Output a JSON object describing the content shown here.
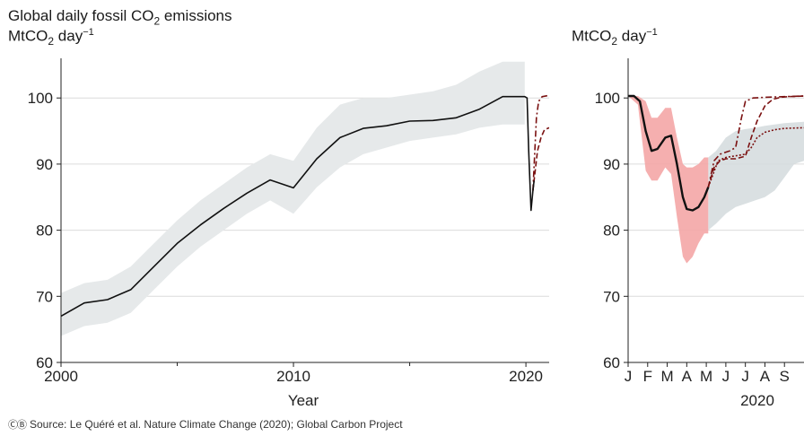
{
  "header": {
    "title_pre": "Global daily fossil CO",
    "title_sub": "2",
    "title_post": " emissions",
    "unit_pre": "MtCO",
    "unit_sub": "2",
    "unit_mid": " day",
    "unit_sup": "−1"
  },
  "footer": {
    "cc_icons": "ⒸⒷ",
    "source": "Source: Le Quéré et al. Nature Climate Change (2020); Global Carbon Project"
  },
  "colors": {
    "line": "#111111",
    "band": "#e6e9ea",
    "confinement_band": "#f4a6a6",
    "scenario": "#7a1010",
    "grid": "#dcdcdc"
  },
  "chart_data": [
    {
      "type": "line",
      "title": "Global daily fossil CO2 emissions",
      "ylabel": "MtCO2 day-1",
      "xlabel": "Year",
      "xlim": [
        2000,
        2021
      ],
      "ylim": [
        60,
        106
      ],
      "yticks": [
        60,
        70,
        80,
        90,
        100
      ],
      "xticks": [
        2000,
        2010,
        2020
      ],
      "xtick_labels": [
        "2000",
        "2010",
        "2020"
      ],
      "minor_xticks": [
        2005,
        2015
      ],
      "grid": true,
      "series": [
        {
          "x": [
            2000,
            2001,
            2002,
            2003,
            2004,
            2005,
            2006,
            2007,
            2008,
            2009,
            2010,
            2011,
            2012,
            2013,
            2014,
            2015,
            2016,
            2017,
            2018,
            2019,
            2019.95,
            2020.05,
            2020.12,
            2020.22,
            2020.3,
            2020.35
          ],
          "y": [
            67,
            69,
            69.5,
            71,
            74.5,
            78,
            80.8,
            83.3,
            85.6,
            87.6,
            86.4,
            90.8,
            94,
            95.4,
            95.8,
            96.5,
            96.6,
            97,
            98.3,
            100.2,
            100.2,
            100,
            92,
            83,
            86,
            87.5
          ]
        }
      ],
      "band": {
        "x": [
          2000,
          2001,
          2002,
          2003,
          2004,
          2005,
          2006,
          2007,
          2008,
          2009,
          2010,
          2011,
          2012,
          2013,
          2014,
          2015,
          2016,
          2017,
          2018,
          2019,
          2019.95
        ],
        "lower": [
          64,
          65.5,
          66,
          67.5,
          71,
          74.5,
          77.5,
          80,
          82.5,
          84.5,
          82.5,
          86.5,
          89.5,
          91.5,
          92.5,
          93.5,
          94,
          94.5,
          95.5,
          96,
          96
        ],
        "upper": [
          70.5,
          72,
          72.5,
          74.5,
          78,
          81.5,
          84.5,
          87,
          89.5,
          91.5,
          90.5,
          95.5,
          99,
          100,
          100,
          100.5,
          101,
          102,
          104,
          105.5,
          105.5
        ]
      },
      "scenarios": [
        {
          "x": [
            2020.3,
            2020.45,
            2020.55,
            2020.7,
            2021
          ],
          "y": [
            86,
            97,
            99.5,
            100.2,
            100.4
          ]
        },
        {
          "x": [
            2020.3,
            2020.5,
            2020.65,
            2020.8,
            2021
          ],
          "y": [
            86,
            92,
            94,
            95.2,
            95.5
          ]
        }
      ]
    },
    {
      "type": "line",
      "ylabel": "MtCO2 day-1",
      "xlabel": "2020",
      "xlim": [
        0,
        9
      ],
      "ylim": [
        60,
        106
      ],
      "yticks": [
        60,
        70,
        80,
        90,
        100
      ],
      "xticks": [
        0,
        1,
        2,
        3,
        4,
        5,
        6,
        7,
        8
      ],
      "xtick_labels": [
        "J",
        "F",
        "M",
        "A",
        "M",
        "J",
        "J",
        "A",
        "S"
      ],
      "grid": true,
      "series": [
        {
          "x": [
            0,
            0.3,
            0.6,
            0.9,
            1.2,
            1.5,
            1.9,
            2.2,
            2.5,
            2.8,
            3.0,
            3.3,
            3.6,
            3.9,
            4.1
          ],
          "y": [
            100.3,
            100.3,
            99.5,
            95,
            92,
            92.3,
            94,
            94.3,
            90,
            85,
            83.2,
            83,
            83.5,
            85,
            86.5
          ]
        }
      ],
      "confinement_band": {
        "x": [
          0,
          0.5,
          0.9,
          1.2,
          1.5,
          1.9,
          2.2,
          2.5,
          2.8,
          3.0,
          3.3,
          3.6,
          3.9,
          4.1
        ],
        "lower": [
          100.3,
          99,
          89,
          87.5,
          87.5,
          89.5,
          88.5,
          82,
          76,
          75,
          76,
          78,
          79.5,
          79.5
        ],
        "upper": [
          100.3,
          100.3,
          99.5,
          97,
          97,
          98.5,
          98.5,
          94,
          90,
          89.5,
          89.5,
          90,
          91,
          91
        ]
      },
      "recovery_band": {
        "x": [
          4.1,
          4.5,
          5,
          5.5,
          6,
          6.5,
          7,
          7.5,
          8,
          8.5,
          9
        ],
        "lower": [
          80,
          81,
          82.5,
          83.5,
          84,
          84.5,
          85,
          86,
          88,
          90,
          90.5
        ],
        "upper": [
          91,
          92,
          94,
          95,
          95.3,
          95.5,
          95.8,
          96,
          96.2,
          96.3,
          96.4
        ]
      },
      "scenarios": [
        {
          "x": [
            4.1,
            4.4,
            4.7,
            5.0,
            5.2,
            5.5,
            5.8,
            6.0,
            6.4,
            7.0,
            8.0,
            9.0
          ],
          "y": [
            86.5,
            90.5,
            91.5,
            91.8,
            92,
            92.5,
            97,
            99.5,
            100,
            100.1,
            100.2,
            100.3
          ]
        },
        {
          "x": [
            4.1,
            4.4,
            4.7,
            5.0,
            5.5,
            6.0,
            6.3,
            6.6,
            7.0,
            7.4,
            7.8,
            8.2,
            9.0
          ],
          "y": [
            86.5,
            89.5,
            90.5,
            90.8,
            90.8,
            91.2,
            94,
            96.5,
            98.8,
            99.8,
            100.1,
            100.2,
            100.3
          ]
        },
        {
          "x": [
            4.1,
            4.6,
            5.0,
            6.0,
            6.3,
            6.6,
            7.0,
            7.5,
            8.0,
            9.0
          ],
          "y": [
            86.5,
            90.5,
            91,
            91.5,
            92.5,
            94,
            94.8,
            95.2,
            95.4,
            95.5
          ]
        }
      ]
    }
  ]
}
